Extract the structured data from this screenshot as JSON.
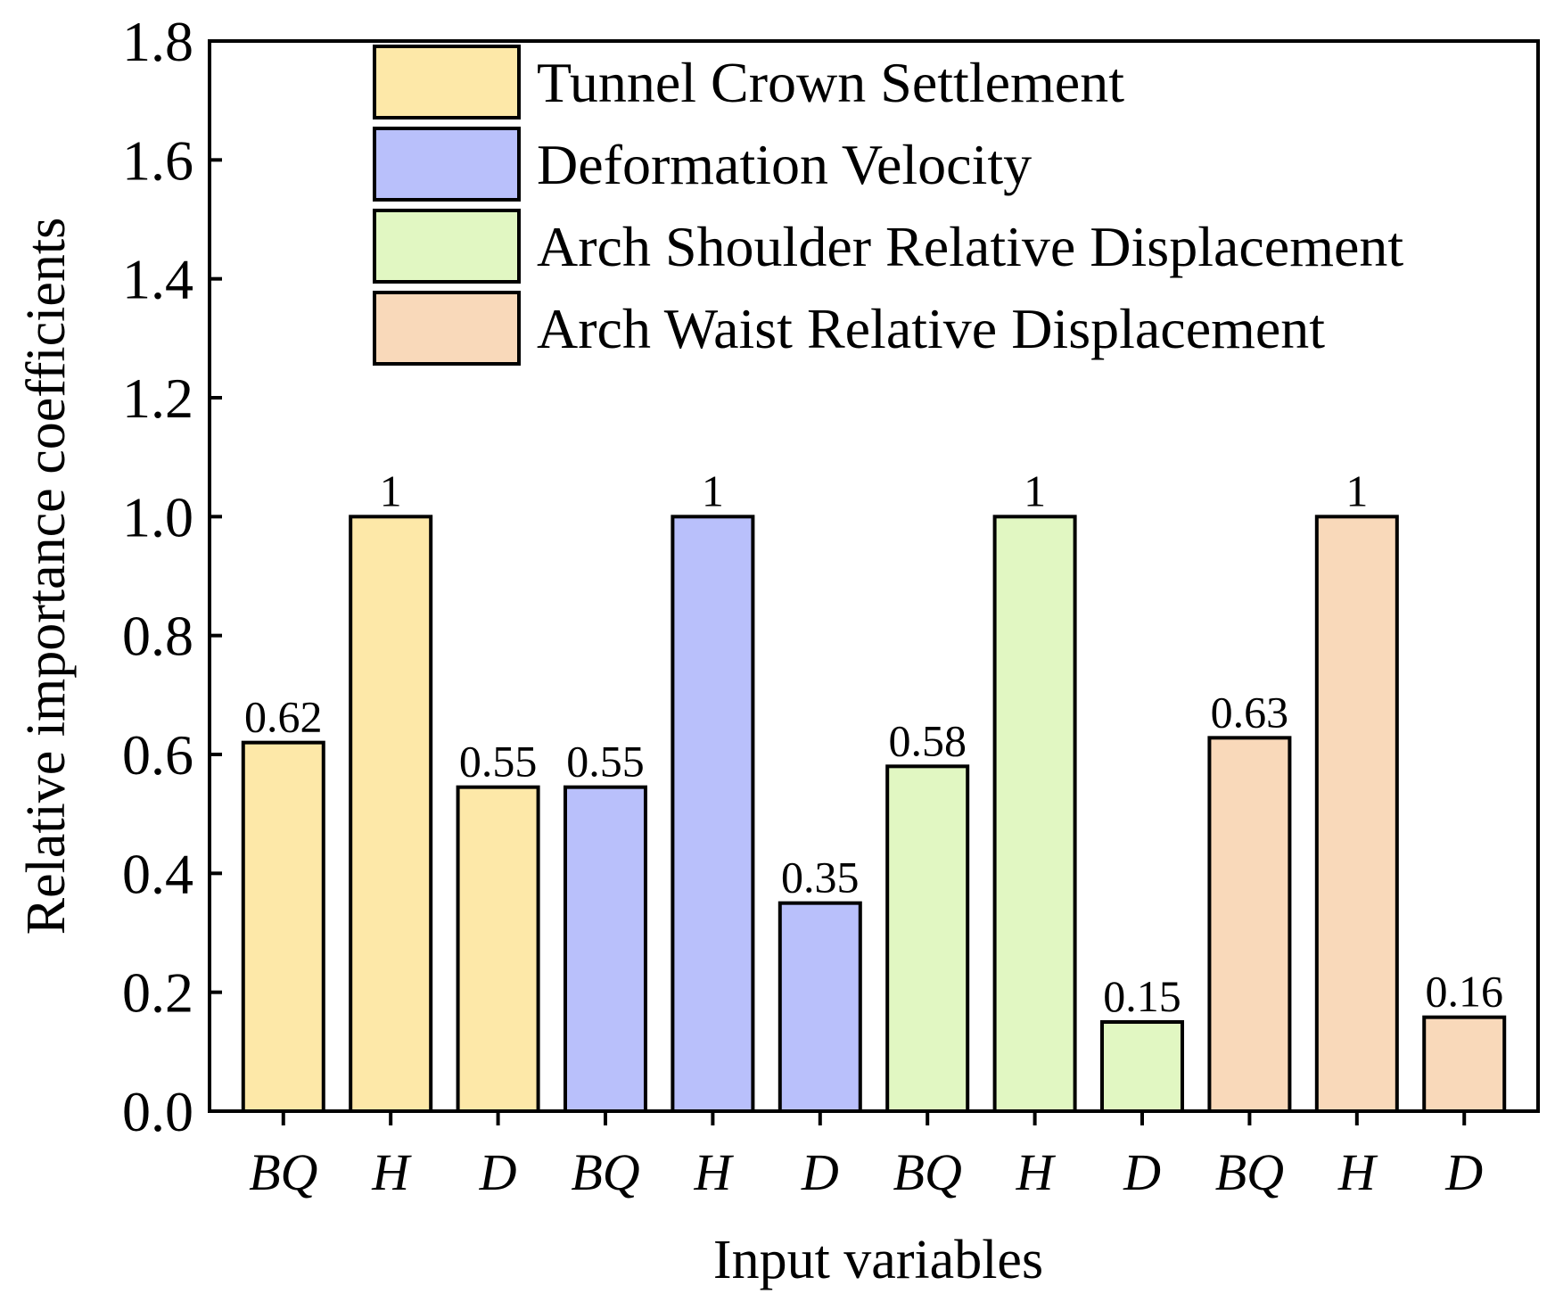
{
  "chart_data": {
    "type": "bar",
    "title": "",
    "xlabel": "Input variables",
    "ylabel": "Relative importance coefficients",
    "ylim": [
      0,
      1.8
    ],
    "yticks": [
      "0.0",
      "0.2",
      "0.4",
      "0.6",
      "0.8",
      "1.0",
      "1.2",
      "1.4",
      "1.6",
      "1.8"
    ],
    "legend_position": "top",
    "series": [
      {
        "name": "Tunnel Crown Settlement",
        "color": "#FDE8A8",
        "categories": [
          "BQ",
          "H",
          "D"
        ],
        "values": [
          0.62,
          1.0,
          0.545
        ],
        "labels": [
          "0.62",
          "1",
          "0.55"
        ]
      },
      {
        "name": "Deformation Velocity",
        "color": "#B9C0FB",
        "categories": [
          "BQ",
          "H",
          "D"
        ],
        "values": [
          0.545,
          1.0,
          0.35
        ],
        "labels": [
          "0.55",
          "1",
          "0.35"
        ]
      },
      {
        "name": "Arch Shoulder Relative Displacement",
        "color": "#E1F7C2",
        "categories": [
          "BQ",
          "H",
          "D"
        ],
        "values": [
          0.58,
          1.0,
          0.15
        ],
        "labels": [
          "0.58",
          "1",
          "0.15"
        ]
      },
      {
        "name": "Arch Waist Relative Displacement",
        "color": "#F9D9BA",
        "categories": [
          "BQ",
          "H",
          "D"
        ],
        "values": [
          0.628,
          1.0,
          0.158
        ],
        "labels": [
          "0.63",
          "1",
          "0.16"
        ]
      }
    ]
  }
}
